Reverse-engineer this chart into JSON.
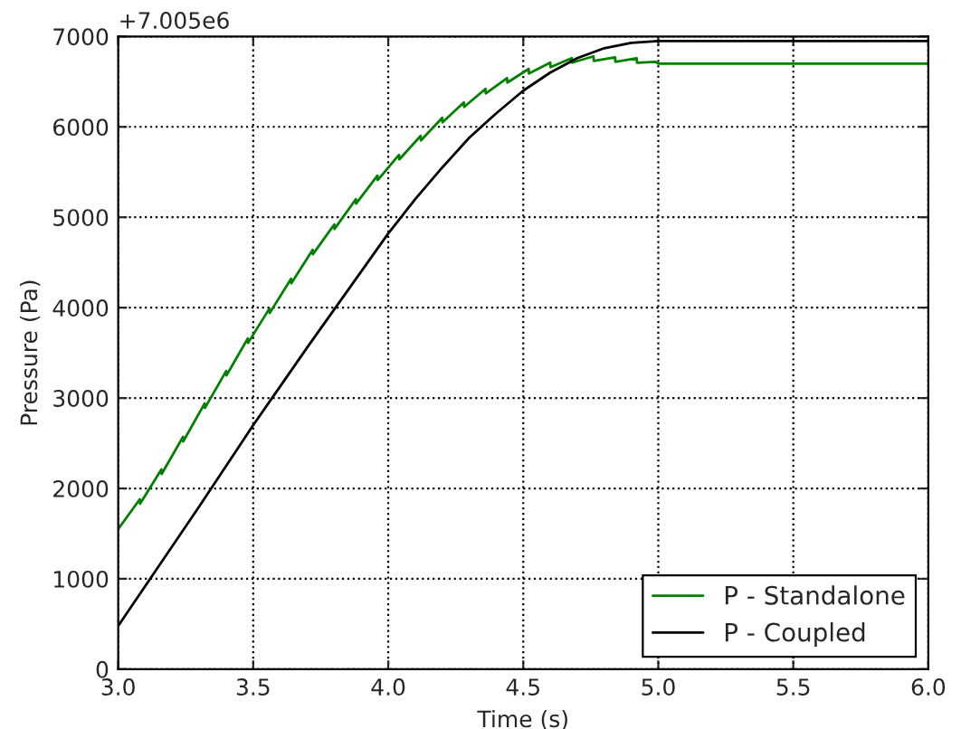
{
  "chart_data": {
    "type": "line",
    "xlabel": "Time (s)",
    "ylabel": "Pressure (Pa)",
    "annotations": [
      "+7.005e6"
    ],
    "series": [
      {
        "name": "P - Standalone",
        "color": "#008000",
        "x": [
          3.0,
          3.08,
          3.081,
          3.16,
          3.161,
          3.24,
          3.241,
          3.32,
          3.321,
          3.4,
          3.401,
          3.48,
          3.481,
          3.56,
          3.561,
          3.64,
          3.641,
          3.72,
          3.721,
          3.8,
          3.801,
          3.88,
          3.881,
          3.96,
          3.961,
          4.04,
          4.041,
          4.12,
          4.121,
          4.2,
          4.201,
          4.28,
          4.281,
          4.36,
          4.361,
          4.44,
          4.441,
          4.52,
          4.521,
          4.6,
          4.601,
          4.68,
          4.681,
          4.76,
          4.761,
          4.84,
          4.841,
          4.92,
          4.921,
          4.99,
          5.0,
          6.0
        ],
        "values": [
          1550,
          1880,
          1830,
          2210,
          2160,
          2570,
          2520,
          2940,
          2890,
          3300,
          3250,
          3660,
          3610,
          3990,
          3940,
          4320,
          4270,
          4640,
          4590,
          4920,
          4870,
          5200,
          5150,
          5460,
          5410,
          5690,
          5640,
          5900,
          5850,
          6100,
          6050,
          6270,
          6220,
          6420,
          6370,
          6540,
          6490,
          6640,
          6590,
          6710,
          6660,
          6760,
          6710,
          6780,
          6730,
          6770,
          6720,
          6760,
          6710,
          6720,
          6700,
          6700
        ]
      },
      {
        "name": "P - Coupled",
        "color": "#000000",
        "x": [
          3.0,
          3.1,
          3.2,
          3.3,
          3.4,
          3.5,
          3.6,
          3.7,
          3.8,
          3.9,
          4.0,
          4.1,
          4.2,
          4.3,
          4.4,
          4.5,
          4.6,
          4.7,
          4.8,
          4.9,
          5.0,
          6.0
        ],
        "values": [
          480,
          920,
          1360,
          1800,
          2250,
          2700,
          3130,
          3560,
          3980,
          4400,
          4820,
          5200,
          5550,
          5880,
          6150,
          6400,
          6600,
          6760,
          6870,
          6930,
          6950,
          6950
        ]
      }
    ],
    "xlim": [
      3.0,
      6.0
    ],
    "xticks": [
      {
        "value": 3.0,
        "label": "3.0"
      },
      {
        "value": 3.5,
        "label": "3.5"
      },
      {
        "value": 4.0,
        "label": "4.0"
      },
      {
        "value": 4.5,
        "label": "4.5"
      },
      {
        "value": 5.0,
        "label": "5.0"
      },
      {
        "value": 5.5,
        "label": "5.5"
      },
      {
        "value": 6.0,
        "label": "6.0"
      }
    ],
    "ylim": [
      0,
      7000
    ],
    "yticks": [
      0,
      1000,
      2000,
      3000,
      4000,
      5000,
      6000,
      7000
    ],
    "grid": true,
    "legend": "bottom right",
    "line_style": "solid"
  }
}
